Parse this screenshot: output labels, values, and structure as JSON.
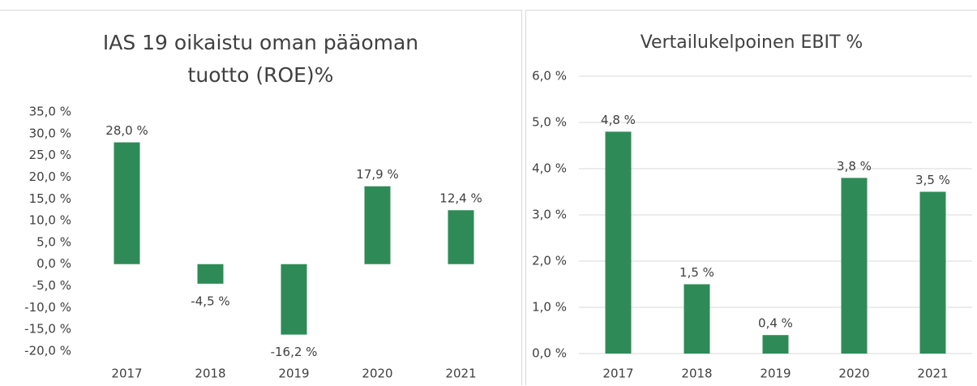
{
  "chart_data": [
    {
      "type": "bar",
      "title": "IAS 19 oikaistu oman pääoman tuotto (ROE)%",
      "categories": [
        "2017",
        "2018",
        "2019",
        "2020",
        "2021"
      ],
      "values": [
        28.0,
        -4.5,
        -16.2,
        17.9,
        12.4
      ],
      "value_labels": [
        "28,0 %",
        "-4,5 %",
        "-16,2 %",
        "17,9 %",
        "12,4 %"
      ],
      "color": "#2e8b57",
      "grid": false,
      "ylim": [
        -20,
        35
      ],
      "yticks": [
        {
          "value": -20,
          "label": "-20,0 %"
        },
        {
          "value": -15,
          "label": "-15,0 %"
        },
        {
          "value": -10,
          "label": "-10,0 %"
        },
        {
          "value": -5,
          "label": "-5,0 %"
        },
        {
          "value": 0,
          "label": "0,0 %"
        },
        {
          "value": 5,
          "label": "5,0 %"
        },
        {
          "value": 10,
          "label": "10,0 %"
        },
        {
          "value": 15,
          "label": "15,0 %"
        },
        {
          "value": 20,
          "label": "20,0 %"
        },
        {
          "value": 25,
          "label": "25,0 %"
        },
        {
          "value": 30,
          "label": "30,0 %"
        },
        {
          "value": 35,
          "label": "35,0 %"
        }
      ]
    },
    {
      "type": "bar",
      "title": "Vertailukelpoinen EBIT %",
      "categories": [
        "2017",
        "2018",
        "2019",
        "2020",
        "2021"
      ],
      "values": [
        4.8,
        1.5,
        0.4,
        3.8,
        3.5
      ],
      "value_labels": [
        "4,8 %",
        "1,5 %",
        "0,4 %",
        "3,8 %",
        "3,5 %"
      ],
      "color": "#2e8b57",
      "grid": true,
      "ylim": [
        0,
        6
      ],
      "yticks": [
        {
          "value": 0,
          "label": "0,0 %"
        },
        {
          "value": 1,
          "label": "1,0 %"
        },
        {
          "value": 2,
          "label": "2,0 %"
        },
        {
          "value": 3,
          "label": "3,0 %"
        },
        {
          "value": 4,
          "label": "4,0 %"
        },
        {
          "value": 5,
          "label": "5,0 %"
        },
        {
          "value": 6,
          "label": "6,0 %"
        }
      ]
    }
  ]
}
